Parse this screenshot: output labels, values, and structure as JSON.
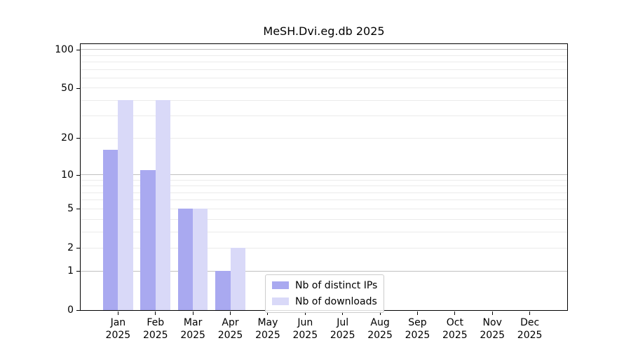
{
  "title": "MeSH.Dvi.eg.db 2025",
  "colors": {
    "ips": "#a9a9f0",
    "downloads": "#d9d9f8",
    "major_grid": "#c0c0c0",
    "minor_grid": "#ebebeb",
    "axis": "#000000"
  },
  "legend": {
    "items": [
      {
        "label": "Nb of distinct IPs",
        "key": "ips"
      },
      {
        "label": "Nb of downloads",
        "key": "downloads"
      }
    ]
  },
  "chart_data": {
    "type": "bar",
    "title": "MeSH.Dvi.eg.db 2025",
    "categories": [
      "Jan",
      "Feb",
      "Mar",
      "Apr",
      "May",
      "Jun",
      "Jul",
      "Aug",
      "Sep",
      "Oct",
      "Nov",
      "Dec"
    ],
    "year_label": "2025",
    "series": [
      {
        "name": "Nb of distinct IPs",
        "key": "ips",
        "values": [
          16,
          11,
          5,
          1,
          0,
          0,
          0,
          0,
          0,
          0,
          0,
          0
        ]
      },
      {
        "name": "Nb of downloads",
        "key": "downloads",
        "values": [
          40,
          40,
          5,
          2,
          0,
          0,
          0,
          0,
          0,
          0,
          0,
          0
        ]
      }
    ],
    "y_scale": "log1p",
    "y_ticks": [
      0,
      1,
      2,
      5,
      10,
      20,
      50,
      100
    ],
    "y_major_gridlines": [
      1,
      10,
      100
    ],
    "y_minor_gridlines": [
      2,
      3,
      4,
      5,
      6,
      7,
      8,
      9,
      20,
      30,
      40,
      50,
      60,
      70,
      80,
      90
    ],
    "ylim": [
      0,
      110
    ],
    "grid": true,
    "legend_position": "lower-center-inside"
  }
}
